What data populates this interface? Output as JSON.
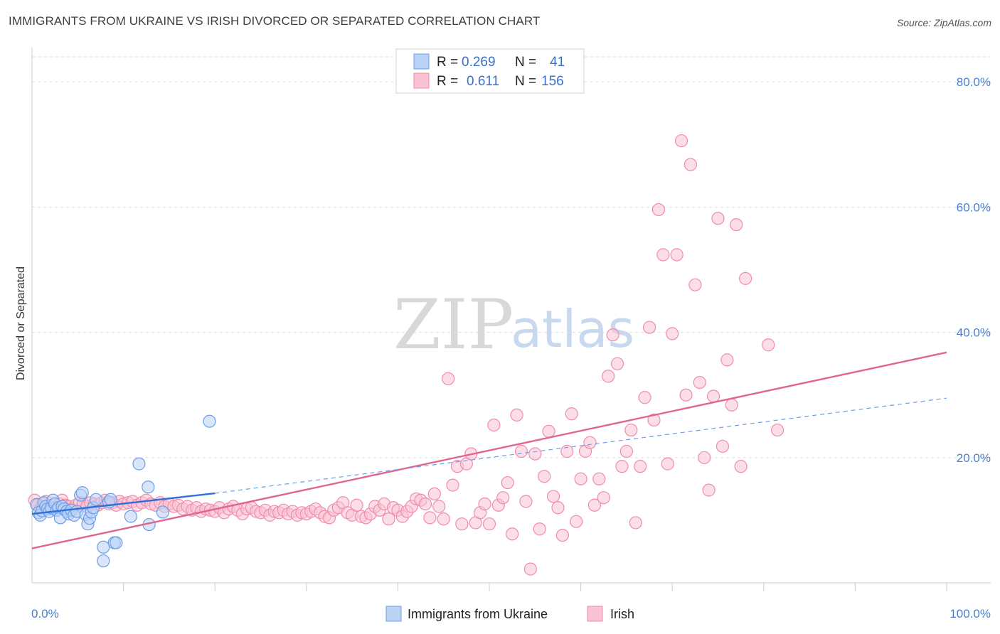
{
  "title": "IMMIGRANTS FROM UKRAINE VS IRISH DIVORCED OR SEPARATED CORRELATION CHART",
  "source": "Source: ZipAtlas.com",
  "watermark": {
    "zip": "ZIP",
    "atlas": "atlas"
  },
  "chart_data": {
    "type": "scatter",
    "title": "IMMIGRANTS FROM UKRAINE VS IRISH DIVORCED OR SEPARATED CORRELATION CHART",
    "xlabel": "",
    "ylabel": "Divorced or Separated",
    "xlim": [
      0,
      100
    ],
    "ylim": [
      0,
      84
    ],
    "x_tick_labels": [
      "0.0%",
      "100.0%"
    ],
    "y_ticks": [
      20,
      40,
      60,
      80
    ],
    "y_tick_labels": [
      "20.0%",
      "40.0%",
      "60.0%",
      "80.0%"
    ],
    "grid": true,
    "legend_position": "top-center",
    "stats": [
      {
        "series": "Immigrants from Ukraine",
        "R_label": "R =",
        "R": "0.269",
        "N_label": "N =",
        "N": "41"
      },
      {
        "series": "Irish",
        "R_label": "R =",
        "R": "0.611",
        "N_label": "N =",
        "N": "156"
      }
    ],
    "series": [
      {
        "name": "Immigrants from Ukraine",
        "color": "#6a9ee8",
        "fill": "#b9d2f5",
        "trend": {
          "x": [
            0,
            20
          ],
          "y": [
            11.0,
            14.3
          ],
          "dashed_extension": {
            "x": [
              20,
              100
            ],
            "y": [
              14.3,
              29.5
            ]
          }
        },
        "points": [
          [
            0.5,
            12.5
          ],
          [
            0.7,
            11.2
          ],
          [
            0.9,
            10.8
          ],
          [
            1.1,
            11.5
          ],
          [
            1.3,
            12.8
          ],
          [
            1.5,
            12.2
          ],
          [
            1.7,
            11.8
          ],
          [
            1.9,
            11.4
          ],
          [
            2.1,
            12.0
          ],
          [
            2.3,
            13.2
          ],
          [
            2.5,
            12.6
          ],
          [
            2.7,
            11.6
          ],
          [
            2.9,
            12.0
          ],
          [
            3.1,
            10.4
          ],
          [
            3.3,
            12.2
          ],
          [
            3.5,
            11.8
          ],
          [
            3.8,
            11.4
          ],
          [
            4.0,
            11.0
          ],
          [
            4.3,
            11.6
          ],
          [
            4.6,
            10.8
          ],
          [
            4.9,
            11.4
          ],
          [
            5.3,
            14.0
          ],
          [
            5.5,
            14.4
          ],
          [
            5.9,
            10.9
          ],
          [
            6.1,
            9.4
          ],
          [
            6.3,
            10.3
          ],
          [
            6.5,
            11.3
          ],
          [
            6.7,
            12.0
          ],
          [
            7.0,
            13.3
          ],
          [
            7.8,
            5.7
          ],
          [
            7.8,
            3.5
          ],
          [
            8.4,
            12.9
          ],
          [
            8.6,
            13.3
          ],
          [
            9.0,
            6.4
          ],
          [
            9.2,
            6.4
          ],
          [
            10.8,
            10.6
          ],
          [
            11.7,
            19.0
          ],
          [
            12.8,
            9.3
          ],
          [
            12.7,
            15.3
          ],
          [
            14.3,
            11.3
          ],
          [
            19.4,
            25.8
          ]
        ]
      },
      {
        "name": "Irish",
        "color": "#f08cab",
        "fill": "#f9c3d4",
        "trend": {
          "x": [
            0,
            100
          ],
          "y": [
            5.5,
            36.8
          ]
        },
        "points": [
          [
            0.3,
            13.2
          ],
          [
            0.6,
            12.4
          ],
          [
            0.9,
            11.8
          ],
          [
            1.2,
            12.6
          ],
          [
            1.5,
            13.0
          ],
          [
            1.8,
            12.2
          ],
          [
            2.1,
            11.8
          ],
          [
            2.4,
            12.6
          ],
          [
            2.7,
            12.0
          ],
          [
            3.0,
            12.6
          ],
          [
            3.3,
            13.2
          ],
          [
            3.6,
            12.4
          ],
          [
            4.0,
            12.2
          ],
          [
            4.4,
            11.8
          ],
          [
            4.8,
            12.4
          ],
          [
            5.2,
            12.8
          ],
          [
            5.6,
            12.6
          ],
          [
            6.0,
            12.2
          ],
          [
            6.4,
            12.8
          ],
          [
            6.8,
            12.6
          ],
          [
            7.2,
            12.4
          ],
          [
            7.6,
            12.8
          ],
          [
            8.0,
            13.2
          ],
          [
            8.4,
            12.6
          ],
          [
            8.8,
            12.8
          ],
          [
            9.2,
            12.4
          ],
          [
            9.6,
            13.0
          ],
          [
            10.0,
            12.6
          ],
          [
            10.5,
            12.8
          ],
          [
            11.0,
            13.0
          ],
          [
            11.5,
            12.4
          ],
          [
            12.0,
            12.8
          ],
          [
            12.5,
            13.2
          ],
          [
            13.0,
            12.6
          ],
          [
            13.5,
            12.4
          ],
          [
            14.0,
            12.8
          ],
          [
            14.5,
            12.2
          ],
          [
            15.0,
            12.6
          ],
          [
            15.5,
            12.2
          ],
          [
            16.0,
            12.4
          ],
          [
            16.5,
            11.8
          ],
          [
            17.0,
            12.2
          ],
          [
            17.5,
            11.6
          ],
          [
            18.0,
            12.0
          ],
          [
            18.5,
            11.4
          ],
          [
            19.0,
            11.8
          ],
          [
            19.5,
            11.6
          ],
          [
            20.0,
            11.4
          ],
          [
            20.5,
            12.0
          ],
          [
            21.0,
            11.2
          ],
          [
            21.5,
            11.8
          ],
          [
            22.0,
            12.2
          ],
          [
            22.5,
            11.6
          ],
          [
            23.0,
            11.0
          ],
          [
            23.5,
            11.8
          ],
          [
            24.0,
            12.0
          ],
          [
            24.5,
            11.4
          ],
          [
            25.0,
            11.2
          ],
          [
            25.5,
            11.6
          ],
          [
            26.0,
            10.8
          ],
          [
            26.5,
            11.4
          ],
          [
            27.0,
            11.2
          ],
          [
            27.5,
            11.6
          ],
          [
            28.0,
            11.0
          ],
          [
            28.5,
            11.4
          ],
          [
            29.0,
            10.8
          ],
          [
            29.5,
            11.2
          ],
          [
            30.0,
            11.0
          ],
          [
            30.5,
            11.4
          ],
          [
            31.0,
            11.8
          ],
          [
            31.5,
            11.2
          ],
          [
            32.0,
            10.6
          ],
          [
            32.5,
            10.4
          ],
          [
            33.0,
            11.6
          ],
          [
            33.5,
            12.0
          ],
          [
            34.0,
            12.8
          ],
          [
            34.5,
            11.2
          ],
          [
            35.0,
            10.8
          ],
          [
            35.5,
            12.4
          ],
          [
            36.0,
            10.6
          ],
          [
            36.5,
            10.4
          ],
          [
            37.0,
            11.0
          ],
          [
            37.5,
            12.2
          ],
          [
            38.0,
            11.6
          ],
          [
            38.5,
            12.6
          ],
          [
            39.0,
            10.2
          ],
          [
            39.5,
            12.0
          ],
          [
            40.0,
            11.6
          ],
          [
            40.5,
            10.6
          ],
          [
            41.0,
            11.4
          ],
          [
            41.5,
            12.2
          ],
          [
            42.0,
            13.4
          ],
          [
            42.5,
            13.2
          ],
          [
            43.0,
            12.6
          ],
          [
            43.5,
            10.4
          ],
          [
            44.0,
            14.2
          ],
          [
            44.5,
            12.2
          ],
          [
            45.0,
            10.2
          ],
          [
            45.5,
            32.6
          ],
          [
            46.0,
            15.6
          ],
          [
            46.5,
            18.6
          ],
          [
            47.0,
            9.4
          ],
          [
            47.5,
            19.0
          ],
          [
            48.0,
            20.6
          ],
          [
            48.5,
            9.6
          ],
          [
            49.0,
            11.2
          ],
          [
            49.5,
            12.6
          ],
          [
            50.0,
            9.4
          ],
          [
            50.5,
            25.2
          ],
          [
            51.0,
            12.4
          ],
          [
            51.5,
            13.6
          ],
          [
            52.0,
            16.0
          ],
          [
            52.5,
            7.8
          ],
          [
            53.0,
            26.8
          ],
          [
            53.5,
            21.0
          ],
          [
            54.0,
            13.0
          ],
          [
            54.5,
            2.2
          ],
          [
            55.0,
            20.6
          ],
          [
            55.5,
            8.6
          ],
          [
            56.0,
            17.0
          ],
          [
            56.5,
            24.2
          ],
          [
            57.0,
            13.8
          ],
          [
            57.5,
            12.0
          ],
          [
            58.0,
            7.6
          ],
          [
            58.5,
            21.0
          ],
          [
            59.0,
            27.0
          ],
          [
            59.5,
            9.8
          ],
          [
            60.0,
            16.6
          ],
          [
            60.5,
            21.0
          ],
          [
            61.0,
            22.4
          ],
          [
            61.5,
            12.4
          ],
          [
            62.0,
            16.6
          ],
          [
            62.5,
            13.6
          ],
          [
            63.0,
            33.0
          ],
          [
            63.5,
            39.6
          ],
          [
            64.0,
            35.0
          ],
          [
            64.5,
            18.6
          ],
          [
            65.0,
            21.0
          ],
          [
            65.5,
            24.4
          ],
          [
            66.0,
            9.6
          ],
          [
            66.5,
            18.6
          ],
          [
            67.0,
            29.6
          ],
          [
            67.5,
            40.8
          ],
          [
            68.0,
            26.0
          ],
          [
            68.5,
            59.6
          ],
          [
            69.0,
            52.4
          ],
          [
            69.5,
            19.0
          ],
          [
            70.0,
            39.8
          ],
          [
            70.5,
            52.4
          ],
          [
            71.0,
            70.6
          ],
          [
            71.5,
            30.0
          ],
          [
            72.0,
            66.8
          ],
          [
            72.5,
            47.6
          ],
          [
            73.0,
            32.0
          ],
          [
            73.5,
            20.0
          ],
          [
            74.0,
            14.8
          ],
          [
            74.5,
            29.8
          ],
          [
            75.0,
            58.2
          ],
          [
            75.5,
            21.8
          ],
          [
            76.0,
            35.6
          ],
          [
            76.5,
            28.4
          ],
          [
            77.0,
            57.2
          ],
          [
            77.5,
            18.6
          ],
          [
            78.0,
            48.6
          ],
          [
            80.5,
            38.0
          ],
          [
            81.5,
            24.4
          ]
        ]
      }
    ]
  },
  "legend": {
    "items": [
      {
        "label": "Immigrants from Ukraine"
      },
      {
        "label": "Irish"
      }
    ]
  }
}
